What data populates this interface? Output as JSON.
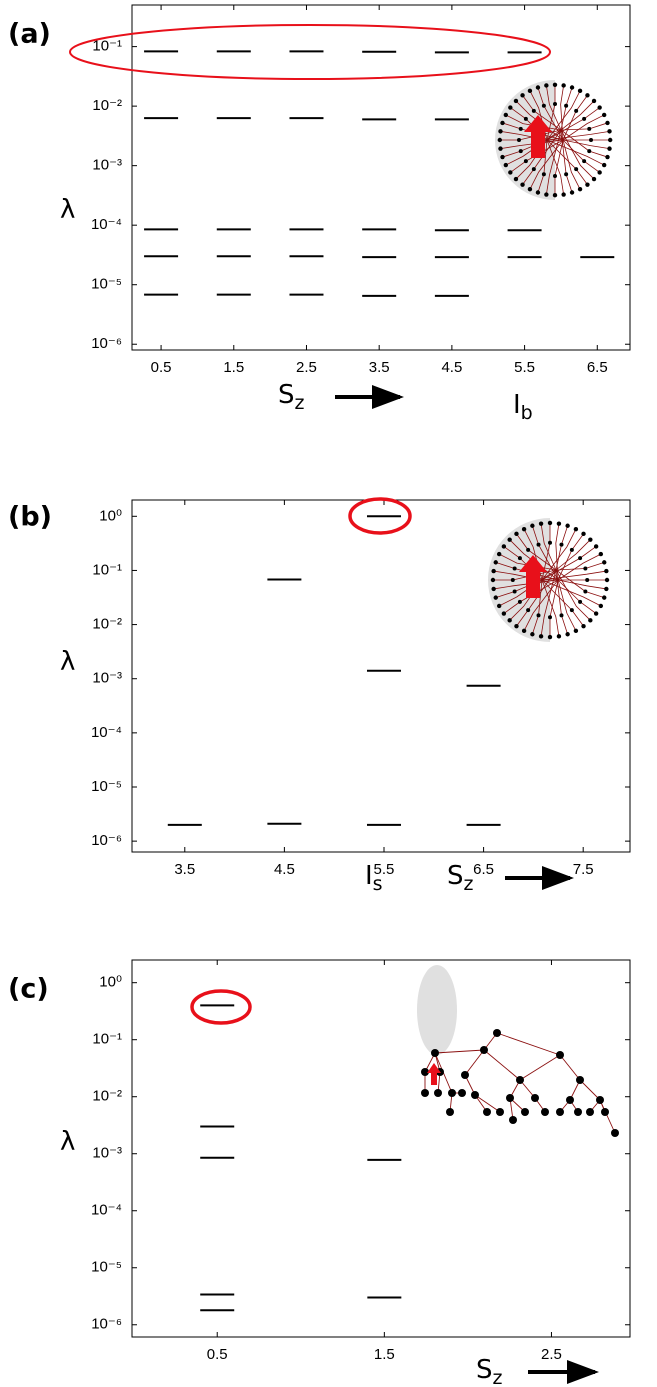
{
  "chart_data": [
    {
      "type": "scatter",
      "panel_label": "(a)",
      "ylabel": "λ",
      "xlabel": {
        "text": "S",
        "subscript": "z"
      },
      "annotation": {
        "text": "I",
        "subscript": "b",
        "color": "#e8101a"
      },
      "log_y": true,
      "marker": "dash",
      "color": "#000000",
      "x": [
        0.5,
        0.5,
        0.5,
        0.5,
        0.5,
        1.5,
        1.5,
        1.5,
        1.5,
        1.5,
        2.5,
        2.5,
        2.5,
        2.5,
        2.5,
        3.5,
        3.5,
        3.5,
        3.5,
        3.5,
        4.5,
        4.5,
        4.5,
        4.5,
        4.5,
        5.5,
        5.5,
        5.5,
        6.5
      ],
      "values": [
        0.083,
        0.0063,
        8.5e-05,
        3e-05,
        6.8e-06,
        0.083,
        0.0063,
        8.5e-05,
        3e-05,
        6.8e-06,
        0.083,
        0.0063,
        8.5e-05,
        3e-05,
        6.8e-06,
        0.082,
        0.006,
        8.5e-05,
        2.9e-05,
        6.5e-06,
        0.08,
        0.006,
        8.2e-05,
        2.9e-05,
        6.5e-06,
        0.08,
        8.2e-05,
        2.9e-05,
        2.9e-05
      ],
      "xlim": [
        0.1,
        6.95
      ],
      "xticks": [
        0.5,
        1.5,
        2.5,
        3.5,
        4.5,
        5.5,
        6.5
      ],
      "ylim": [
        8e-07,
        0.5
      ],
      "yticks": [
        {
          "value": 1e-06,
          "label": "10⁻⁶"
        },
        {
          "value": 1e-05,
          "label": "10⁻⁵"
        },
        {
          "value": 0.0001,
          "label": "10⁻⁴"
        },
        {
          "value": 0.001,
          "label": "10⁻³"
        },
        {
          "value": 0.01,
          "label": "10⁻²"
        },
        {
          "value": 0.1,
          "label": "10⁻¹"
        }
      ]
    },
    {
      "type": "scatter",
      "panel_label": "(b)",
      "ylabel": "λ",
      "xlabel": {
        "text": "S",
        "subscript": "z"
      },
      "annotation": {
        "text": "I",
        "subscript": "s",
        "color": "#e8101a"
      },
      "log_y": true,
      "marker": "dash",
      "color": "#000000",
      "x": [
        3.5,
        4.5,
        4.5,
        5.5,
        5.5,
        5.5,
        6.5,
        6.5
      ],
      "values": [
        2e-06,
        0.068,
        2.1e-06,
        1.0,
        0.0014,
        2e-06,
        0.00074,
        2e-06
      ],
      "xlim": [
        2.97,
        7.97
      ],
      "xticks": [
        3.5,
        4.5,
        5.5,
        6.5,
        7.5
      ],
      "ylim": [
        6.3e-07,
        2
      ],
      "yticks": [
        {
          "value": 1e-06,
          "label": "10⁻⁶"
        },
        {
          "value": 1e-05,
          "label": "10⁻⁵"
        },
        {
          "value": 0.0001,
          "label": "10⁻⁴"
        },
        {
          "value": 0.001,
          "label": "10⁻³"
        },
        {
          "value": 0.01,
          "label": "10⁻²"
        },
        {
          "value": 0.1,
          "label": "10⁻¹"
        },
        {
          "value": 1,
          "label": "10⁰"
        }
      ]
    },
    {
      "type": "scatter",
      "panel_label": "(c)",
      "ylabel": "λ",
      "xlabel": {
        "text": "S",
        "subscript": "z"
      },
      "log_y": true,
      "marker": "dash",
      "color": "#000000",
      "x": [
        0.5,
        0.5,
        0.5,
        0.5,
        0.5,
        1.5,
        1.5
      ],
      "values": [
        0.4,
        0.003,
        0.00085,
        3.4e-06,
        1.8e-06,
        0.00078,
        3e-06
      ],
      "xlim": [
        -0.01,
        2.97
      ],
      "xticks": [
        0.5,
        1.5,
        2.5
      ],
      "ylim": [
        6.1e-07,
        2.5
      ],
      "yticks": [
        {
          "value": 1e-06,
          "label": "10⁻⁶"
        },
        {
          "value": 1e-05,
          "label": "10⁻⁵"
        },
        {
          "value": 0.0001,
          "label": "10⁻⁴"
        },
        {
          "value": 0.001,
          "label": "10⁻³"
        },
        {
          "value": 0.01,
          "label": "10⁻²"
        },
        {
          "value": 0.1,
          "label": "10⁻¹"
        },
        {
          "value": 1,
          "label": "10⁰"
        }
      ]
    }
  ]
}
